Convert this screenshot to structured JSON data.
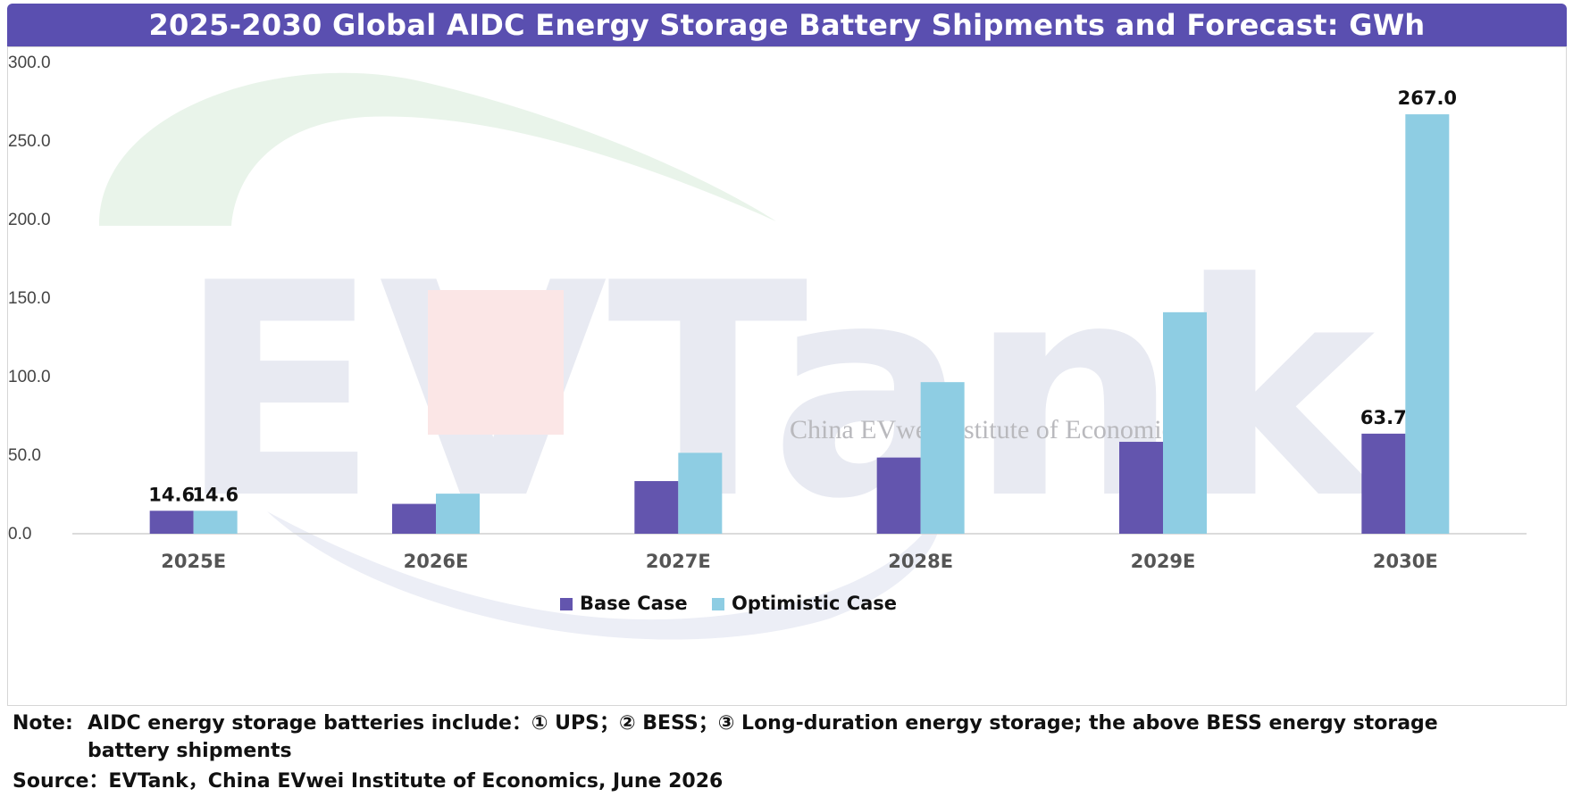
{
  "watermark": {
    "logo_text": "EVTank",
    "institute_text": "China EVwei Institute of Economics"
  },
  "chart_data": {
    "type": "bar",
    "title": "2025-2030 Global AIDC Energy Storage Battery Shipments and Forecast: GWh",
    "categories": [
      "2025E",
      "2026E",
      "2027E",
      "2028E",
      "2029E",
      "2030E"
    ],
    "series": [
      {
        "name": "Base Case",
        "color": "#6355ae",
        "values": [
          14.6,
          19,
          33.5,
          48.5,
          58.5,
          63.7
        ],
        "labels": [
          "14.6",
          "",
          "",
          "",
          "",
          "63.7"
        ]
      },
      {
        "name": "Optimistic Case",
        "color": "#8ecde3",
        "values": [
          14.6,
          25.5,
          51.5,
          96.5,
          141,
          267.0
        ],
        "labels": [
          "14.6",
          "",
          "",
          "",
          "",
          "267.0"
        ]
      }
    ],
    "ylim": [
      0,
      300
    ],
    "yticks": [
      "0.0",
      "50.0",
      "100.0",
      "150.0",
      "200.0",
      "250.0",
      "300.0"
    ],
    "xlabel": "",
    "ylabel": "",
    "grid": false,
    "legend": "bottom-center"
  },
  "footer": {
    "note_label": "Note:",
    "note_text": "AIDC energy storage batteries include：① UPS；② BESS；③ Long-duration energy storage; the above BESS energy storage battery shipments",
    "source": "Source：EVTank，China EVwei Institute of Economics, June 2026"
  }
}
